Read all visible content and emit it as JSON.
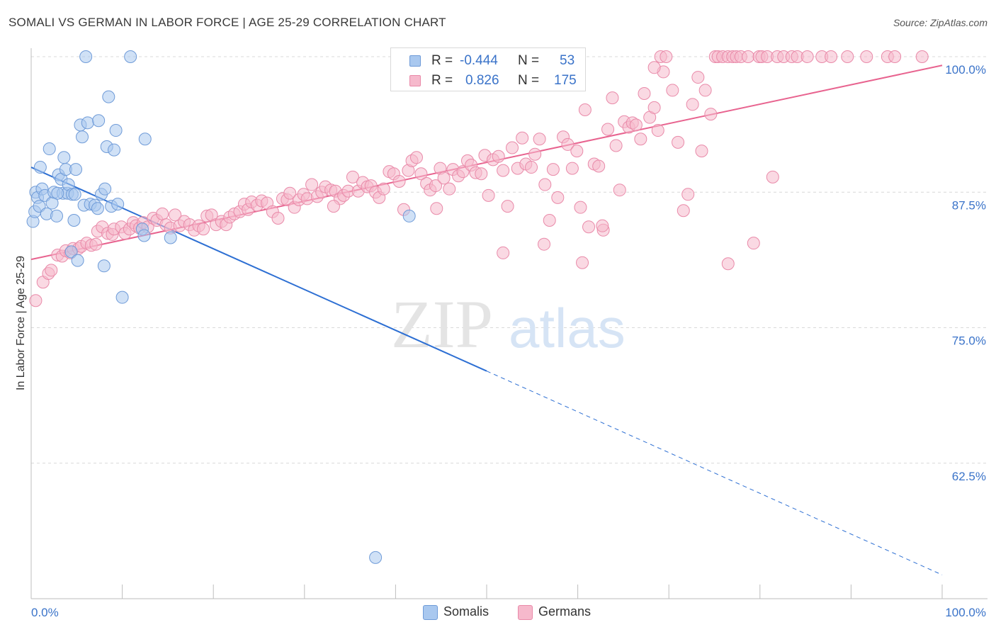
{
  "title": "SOMALI VS GERMAN IN LABOR FORCE | AGE 25-29 CORRELATION CHART",
  "source": "Source: ZipAtlas.com",
  "watermark": {
    "zip": "ZIP",
    "atlas": "atlas"
  },
  "stats": [
    {
      "r_label": "R =",
      "r_value": "-0.444",
      "n_label": "N =",
      "n_value": "53"
    },
    {
      "r_label": "R =",
      "r_value": "0.826",
      "n_label": "N =",
      "n_value": "175"
    }
  ],
  "legend": [
    {
      "label": "Somalis"
    },
    {
      "label": "Germans"
    }
  ],
  "colors": {
    "somalis_fill": "#a9c8ef",
    "somalis_stroke": "#6f9bd8",
    "somalis_line": "#2d6fd3",
    "germans_fill": "#f6b9cc",
    "germans_stroke": "#e98aa9",
    "germans_line": "#e8638f",
    "tick_label": "#3a73c9",
    "grid": "#d8d8d8"
  },
  "chart_data": {
    "type": "scatter",
    "xlabel": "",
    "ylabel": "In Labor Force | Age 25-29",
    "xlim": [
      0,
      100
    ],
    "ylim": [
      50,
      100
    ],
    "x_tick_labels": [
      "0.0%",
      "100.0%"
    ],
    "y_ticks": [
      62.5,
      75.0,
      87.5,
      100.0
    ],
    "y_tick_labels": [
      "62.5%",
      "75.0%",
      "87.5%",
      "100.0%"
    ],
    "grid": true,
    "legend_position": "bottom-center",
    "series": [
      {
        "name": "Somalis",
        "r": -0.444,
        "n": 53,
        "trend": {
          "x0": 0,
          "y0": 89.8,
          "x1": 50,
          "y1": 71.0,
          "dashed_to_x": 100,
          "dashed_to_y": 52.2
        },
        "points": [
          [
            0.2,
            84.8
          ],
          [
            0.4,
            85.7
          ],
          [
            0.5,
            87.5
          ],
          [
            0.7,
            87.0
          ],
          [
            0.9,
            86.2
          ],
          [
            1.0,
            89.8
          ],
          [
            1.2,
            87.8
          ],
          [
            1.5,
            87.2
          ],
          [
            1.7,
            85.5
          ],
          [
            2.0,
            91.5
          ],
          [
            2.3,
            86.5
          ],
          [
            2.5,
            87.5
          ],
          [
            2.8,
            85.3
          ],
          [
            3.0,
            89.1
          ],
          [
            3.3,
            88.7
          ],
          [
            3.5,
            87.4
          ],
          [
            3.6,
            90.7
          ],
          [
            3.8,
            89.6
          ],
          [
            4.0,
            87.4
          ],
          [
            4.1,
            88.2
          ],
          [
            4.4,
            82.0
          ],
          [
            4.5,
            87.3
          ],
          [
            4.7,
            84.9
          ],
          [
            4.9,
            89.6
          ],
          [
            5.1,
            81.2
          ],
          [
            5.4,
            93.7
          ],
          [
            5.6,
            92.6
          ],
          [
            5.8,
            86.3
          ],
          [
            6.0,
            100
          ],
          [
            6.2,
            93.9
          ],
          [
            6.5,
            86.4
          ],
          [
            7.0,
            86.3
          ],
          [
            7.3,
            86.0
          ],
          [
            7.4,
            94.1
          ],
          [
            7.7,
            87.3
          ],
          [
            8.0,
            80.7
          ],
          [
            8.1,
            87.8
          ],
          [
            8.3,
            91.7
          ],
          [
            8.5,
            96.3
          ],
          [
            8.8,
            86.2
          ],
          [
            9.1,
            91.4
          ],
          [
            9.3,
            93.2
          ],
          [
            9.5,
            86.4
          ],
          [
            10.0,
            77.8
          ],
          [
            10.9,
            100
          ],
          [
            12.2,
            84.1
          ],
          [
            12.4,
            83.5
          ],
          [
            12.5,
            92.4
          ],
          [
            15.3,
            83.3
          ],
          [
            41.5,
            85.3
          ],
          [
            37.8,
            53.8
          ],
          [
            2.9,
            87.4
          ],
          [
            4.8,
            87.3
          ]
        ]
      },
      {
        "name": "Germans",
        "r": 0.826,
        "n": 175,
        "trend": {
          "x0": 0,
          "y0": 81.3,
          "x1": 100,
          "y1": 99.2
        },
        "points": [
          [
            0.5,
            77.5
          ],
          [
            1.3,
            79.2
          ],
          [
            1.9,
            80.0
          ],
          [
            2.2,
            80.3
          ],
          [
            2.9,
            81.7
          ],
          [
            3.4,
            81.6
          ],
          [
            3.8,
            82.1
          ],
          [
            4.3,
            81.9
          ],
          [
            4.6,
            82.3
          ],
          [
            5.2,
            82.3
          ],
          [
            5.5,
            82.5
          ],
          [
            6.1,
            82.8
          ],
          [
            6.6,
            82.6
          ],
          [
            7.1,
            82.7
          ],
          [
            7.3,
            83.9
          ],
          [
            7.8,
            84.3
          ],
          [
            8.4,
            83.7
          ],
          [
            8.9,
            83.6
          ],
          [
            9.1,
            84.1
          ],
          [
            9.9,
            84.3
          ],
          [
            10.3,
            83.7
          ],
          [
            10.8,
            84.1
          ],
          [
            11.2,
            84.7
          ],
          [
            11.5,
            84.4
          ],
          [
            11.9,
            84.2
          ],
          [
            12.3,
            84.7
          ],
          [
            12.8,
            84.3
          ],
          [
            13.4,
            85.1
          ],
          [
            13.8,
            84.9
          ],
          [
            14.4,
            85.5
          ],
          [
            14.8,
            84.5
          ],
          [
            15.3,
            84.2
          ],
          [
            15.8,
            85.4
          ],
          [
            16.3,
            84.4
          ],
          [
            16.8,
            84.8
          ],
          [
            17.4,
            84.5
          ],
          [
            17.9,
            84.0
          ],
          [
            18.4,
            84.4
          ],
          [
            18.9,
            84.1
          ],
          [
            19.3,
            85.3
          ],
          [
            19.8,
            85.4
          ],
          [
            20.3,
            84.5
          ],
          [
            20.9,
            84.8
          ],
          [
            21.4,
            84.5
          ],
          [
            21.8,
            85.2
          ],
          [
            22.3,
            85.5
          ],
          [
            22.9,
            85.7
          ],
          [
            23.4,
            86.4
          ],
          [
            23.8,
            85.9
          ],
          [
            24.2,
            86.6
          ],
          [
            24.8,
            86.3
          ],
          [
            25.3,
            86.7
          ],
          [
            25.9,
            86.5
          ],
          [
            26.5,
            85.7
          ],
          [
            27.1,
            85.1
          ],
          [
            27.6,
            86.9
          ],
          [
            28.1,
            86.8
          ],
          [
            28.4,
            87.4
          ],
          [
            28.9,
            86.1
          ],
          [
            29.4,
            86.8
          ],
          [
            29.9,
            87.3
          ],
          [
            30.3,
            86.9
          ],
          [
            30.8,
            88.2
          ],
          [
            31.4,
            87.1
          ],
          [
            31.9,
            87.5
          ],
          [
            32.3,
            88.0
          ],
          [
            32.9,
            87.7
          ],
          [
            33.4,
            87.6
          ],
          [
            33.9,
            86.9
          ],
          [
            34.3,
            87.2
          ],
          [
            34.8,
            87.6
          ],
          [
            35.3,
            88.9
          ],
          [
            35.9,
            87.6
          ],
          [
            36.4,
            88.4
          ],
          [
            36.9,
            88.0
          ],
          [
            37.3,
            88.1
          ],
          [
            37.8,
            87.5
          ],
          [
            38.2,
            87.0
          ],
          [
            38.7,
            87.8
          ],
          [
            39.3,
            89.4
          ],
          [
            39.8,
            89.2
          ],
          [
            40.4,
            88.5
          ],
          [
            40.9,
            85.9
          ],
          [
            41.4,
            89.5
          ],
          [
            41.8,
            90.4
          ],
          [
            42.3,
            90.7
          ],
          [
            42.8,
            89.2
          ],
          [
            43.4,
            88.3
          ],
          [
            43.8,
            87.7
          ],
          [
            44.4,
            88.1
          ],
          [
            44.9,
            89.7
          ],
          [
            45.3,
            88.8
          ],
          [
            45.9,
            87.8
          ],
          [
            46.3,
            89.6
          ],
          [
            46.9,
            89.0
          ],
          [
            47.4,
            89.4
          ],
          [
            47.9,
            90.4
          ],
          [
            48.3,
            90.0
          ],
          [
            48.8,
            89.3
          ],
          [
            49.4,
            89.2
          ],
          [
            49.8,
            90.9
          ],
          [
            50.2,
            87.2
          ],
          [
            50.7,
            90.5
          ],
          [
            51.3,
            90.8
          ],
          [
            51.8,
            89.5
          ],
          [
            52.3,
            86.2
          ],
          [
            52.8,
            91.6
          ],
          [
            53.4,
            89.7
          ],
          [
            53.9,
            92.5
          ],
          [
            54.3,
            90.1
          ],
          [
            54.9,
            89.8
          ],
          [
            55.3,
            91.0
          ],
          [
            55.8,
            92.4
          ],
          [
            56.4,
            88.2
          ],
          [
            56.9,
            84.9
          ],
          [
            57.3,
            89.6
          ],
          [
            57.8,
            87.0
          ],
          [
            58.4,
            92.6
          ],
          [
            58.9,
            91.9
          ],
          [
            59.4,
            89.7
          ],
          [
            59.9,
            91.3
          ],
          [
            60.3,
            86.1
          ],
          [
            60.8,
            95.1
          ],
          [
            61.2,
            84.3
          ],
          [
            61.8,
            90.1
          ],
          [
            62.3,
            89.9
          ],
          [
            62.8,
            84.0
          ],
          [
            63.3,
            93.3
          ],
          [
            63.8,
            96.2
          ],
          [
            64.2,
            91.8
          ],
          [
            64.6,
            87.7
          ],
          [
            65.1,
            94.0
          ],
          [
            65.6,
            93.5
          ],
          [
            66.0,
            93.9
          ],
          [
            66.4,
            93.7
          ],
          [
            66.9,
            92.4
          ],
          [
            67.3,
            96.6
          ],
          [
            67.9,
            94.4
          ],
          [
            68.4,
            95.3
          ],
          [
            68.8,
            93.2
          ],
          [
            69.1,
            100
          ],
          [
            69.4,
            98.6
          ],
          [
            69.7,
            100
          ],
          [
            70.4,
            96.9
          ],
          [
            71.0,
            92.1
          ],
          [
            71.6,
            85.8
          ],
          [
            72.1,
            87.3
          ],
          [
            72.6,
            95.6
          ],
          [
            73.2,
            98.1
          ],
          [
            73.6,
            91.3
          ],
          [
            74.0,
            96.9
          ],
          [
            74.6,
            94.7
          ],
          [
            75.1,
            100
          ],
          [
            75.4,
            100
          ],
          [
            75.9,
            100
          ],
          [
            76.5,
            100
          ],
          [
            77.0,
            100
          ],
          [
            77.4,
            100
          ],
          [
            77.9,
            100
          ],
          [
            78.7,
            100
          ],
          [
            79.3,
            82.8
          ],
          [
            79.9,
            100
          ],
          [
            80.2,
            100
          ],
          [
            80.8,
            100
          ],
          [
            81.4,
            88.9
          ],
          [
            81.9,
            100
          ],
          [
            82.6,
            100
          ],
          [
            83.5,
            100
          ],
          [
            84.1,
            100
          ],
          [
            85.2,
            100
          ],
          [
            86.8,
            100
          ],
          [
            87.8,
            100
          ],
          [
            89.6,
            100
          ],
          [
            91.7,
            100
          ],
          [
            94.0,
            100
          ],
          [
            94.8,
            100
          ],
          [
            97.8,
            100
          ],
          [
            60.5,
            81.0
          ],
          [
            76.5,
            80.9
          ],
          [
            68.4,
            99.0
          ],
          [
            56.3,
            82.7
          ],
          [
            62.7,
            84.4
          ],
          [
            51.8,
            81.9
          ],
          [
            44.5,
            86.0
          ],
          [
            33.2,
            86.2
          ]
        ]
      }
    ]
  }
}
